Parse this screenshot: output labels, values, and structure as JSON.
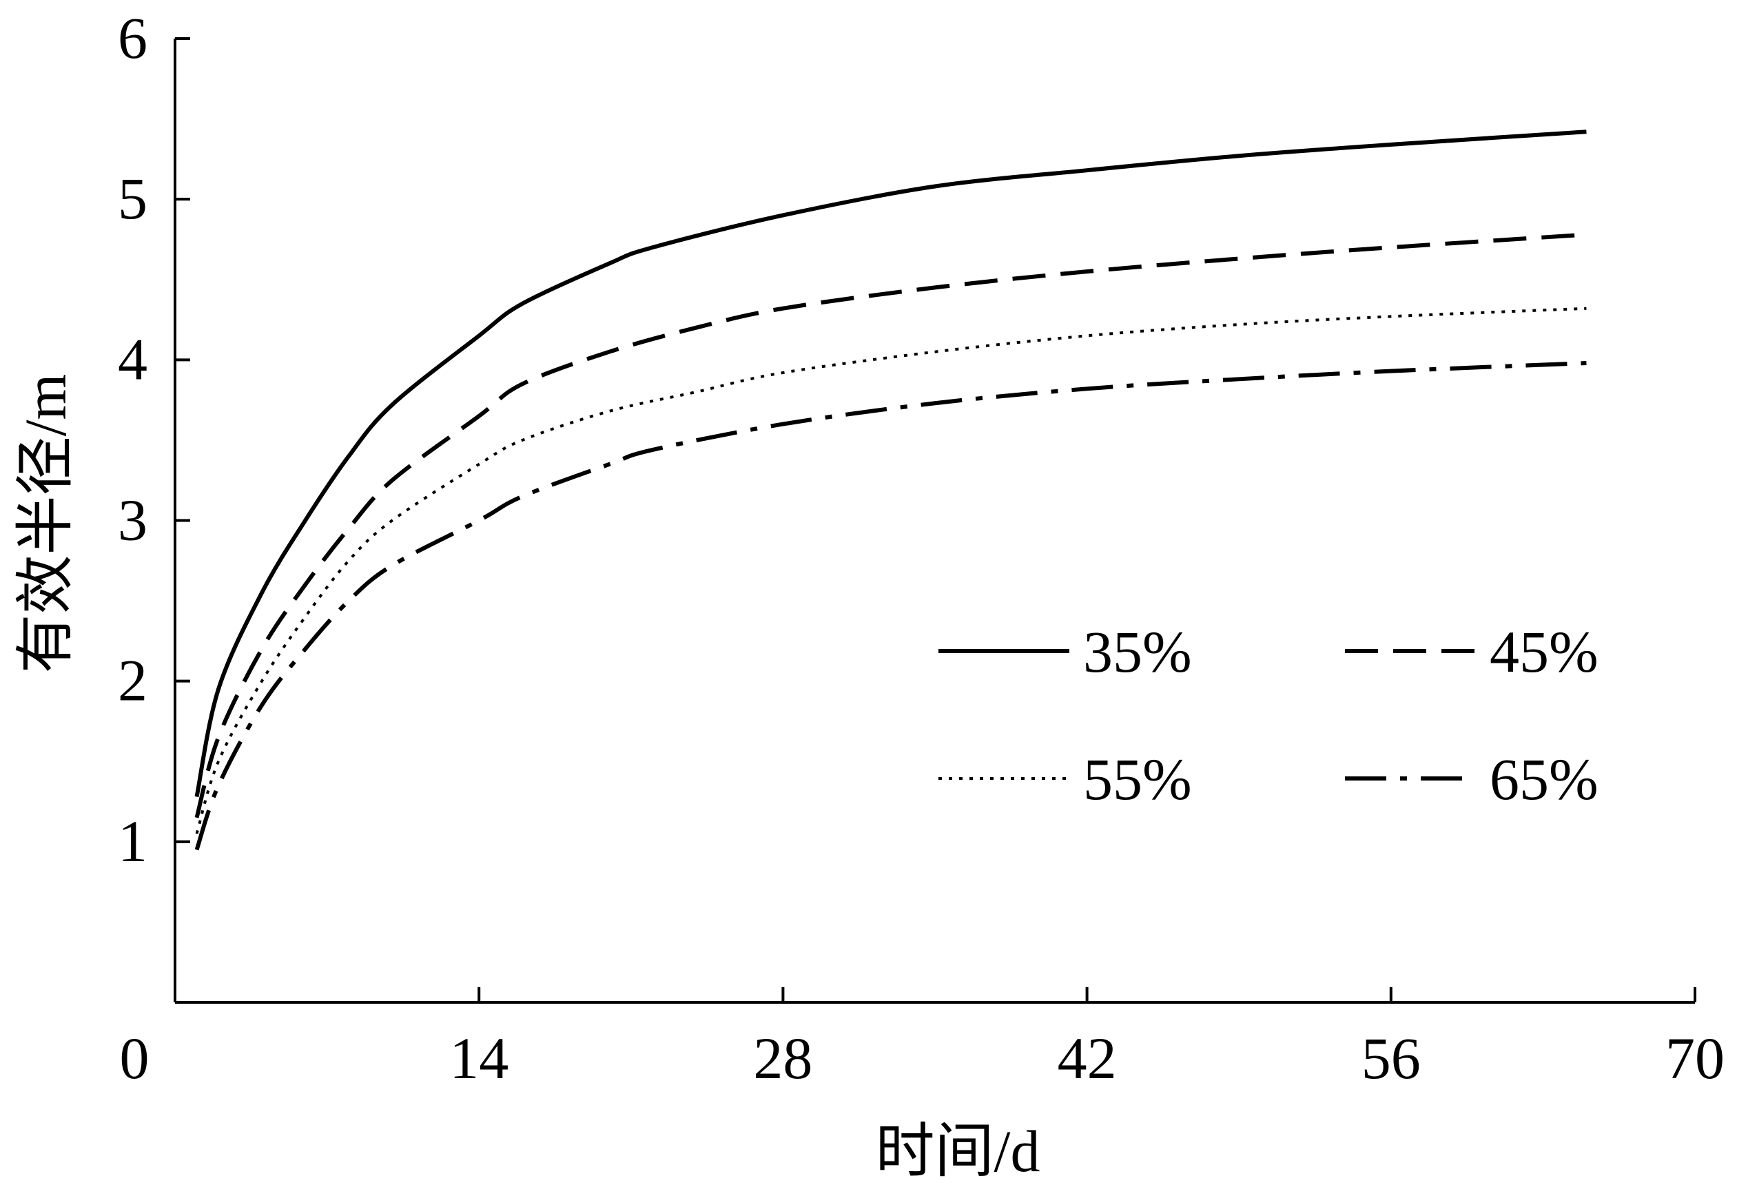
{
  "chart_data": {
    "type": "line",
    "title": "",
    "xlabel": "时间/d",
    "ylabel": "有效半径/m",
    "xlim": [
      0,
      70
    ],
    "ylim": [
      0,
      6
    ],
    "xticks": [
      0,
      14,
      28,
      42,
      56,
      70
    ],
    "yticks": [
      1,
      2,
      3,
      4,
      5,
      6
    ],
    "xtick_labels": [
      "0",
      "14",
      "28",
      "42",
      "56",
      "70"
    ],
    "ytick_labels": [
      "1",
      "2",
      "3",
      "4",
      "5",
      "6"
    ],
    "grid": false,
    "legend_position": "center-right",
    "series": [
      {
        "name": "35%",
        "style": "solid",
        "x": [
          1,
          2,
          4,
          6,
          8,
          10,
          14,
          16,
          20,
          22,
          28,
          35,
          42,
          49,
          56,
          65
        ],
        "y": [
          1.28,
          1.95,
          2.55,
          3.0,
          3.4,
          3.72,
          4.15,
          4.35,
          4.6,
          4.7,
          4.9,
          5.08,
          5.18,
          5.27,
          5.34,
          5.42
        ]
      },
      {
        "name": "45%",
        "style": "dashed",
        "x": [
          1,
          2,
          4,
          6,
          8,
          10,
          14,
          16,
          20,
          24,
          28,
          35,
          42,
          49,
          56,
          65
        ],
        "y": [
          1.15,
          1.65,
          2.2,
          2.6,
          2.95,
          3.25,
          3.65,
          3.85,
          4.05,
          4.2,
          4.32,
          4.45,
          4.55,
          4.63,
          4.7,
          4.78
        ]
      },
      {
        "name": "55%",
        "style": "dotted",
        "x": [
          1,
          2,
          4,
          6,
          8,
          10,
          14,
          16,
          20,
          24,
          28,
          35,
          42,
          49,
          56,
          65
        ],
        "y": [
          1.05,
          1.5,
          2.0,
          2.4,
          2.75,
          3.0,
          3.35,
          3.5,
          3.68,
          3.8,
          3.92,
          4.05,
          4.15,
          4.22,
          4.27,
          4.32
        ]
      },
      {
        "name": "65%",
        "style": "dashdot",
        "x": [
          1,
          2,
          4,
          6,
          8,
          10,
          14,
          16,
          20,
          22,
          28,
          35,
          42,
          49,
          56,
          65
        ],
        "y": [
          0.95,
          1.35,
          1.85,
          2.2,
          2.5,
          2.72,
          3.0,
          3.15,
          3.35,
          3.44,
          3.6,
          3.73,
          3.82,
          3.88,
          3.93,
          3.98
        ]
      }
    ]
  }
}
